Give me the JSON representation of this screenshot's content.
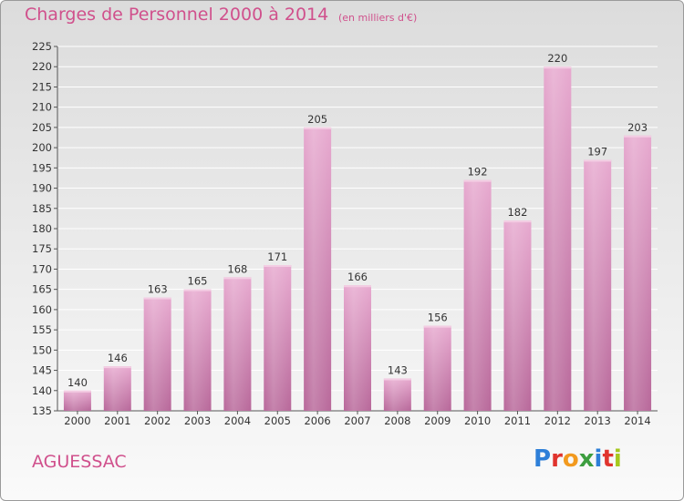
{
  "header": {
    "title": "Charges de Personnel 2000 à 2014",
    "subtitle": "(en milliers d'€)"
  },
  "footer": {
    "location": "AGUESSAC",
    "logo_text": "Proxiti",
    "logo_colors": [
      "#2e7fd8",
      "#e0342e",
      "#f29a1f",
      "#3d9e3f",
      "#2e7fd8",
      "#e0342e",
      "#a6c81e"
    ]
  },
  "chart_data": {
    "type": "bar",
    "title": "Charges de Personnel 2000 à 2014",
    "subtitle": "(en milliers d'€)",
    "categories": [
      "2000",
      "2001",
      "2002",
      "2003",
      "2004",
      "2005",
      "2006",
      "2007",
      "2008",
      "2009",
      "2010",
      "2011",
      "2012",
      "2013",
      "2014"
    ],
    "values": [
      140,
      146,
      163,
      165,
      168,
      171,
      205,
      166,
      143,
      156,
      192,
      182,
      220,
      197,
      203
    ],
    "ylim": [
      135,
      225
    ],
    "yticks": [
      135,
      140,
      145,
      150,
      155,
      160,
      165,
      170,
      175,
      180,
      185,
      190,
      195,
      200,
      205,
      210,
      215,
      220,
      225
    ],
    "grid": true,
    "bar_color": "#d98cb8",
    "bar_color_dark": "#b8689a"
  }
}
